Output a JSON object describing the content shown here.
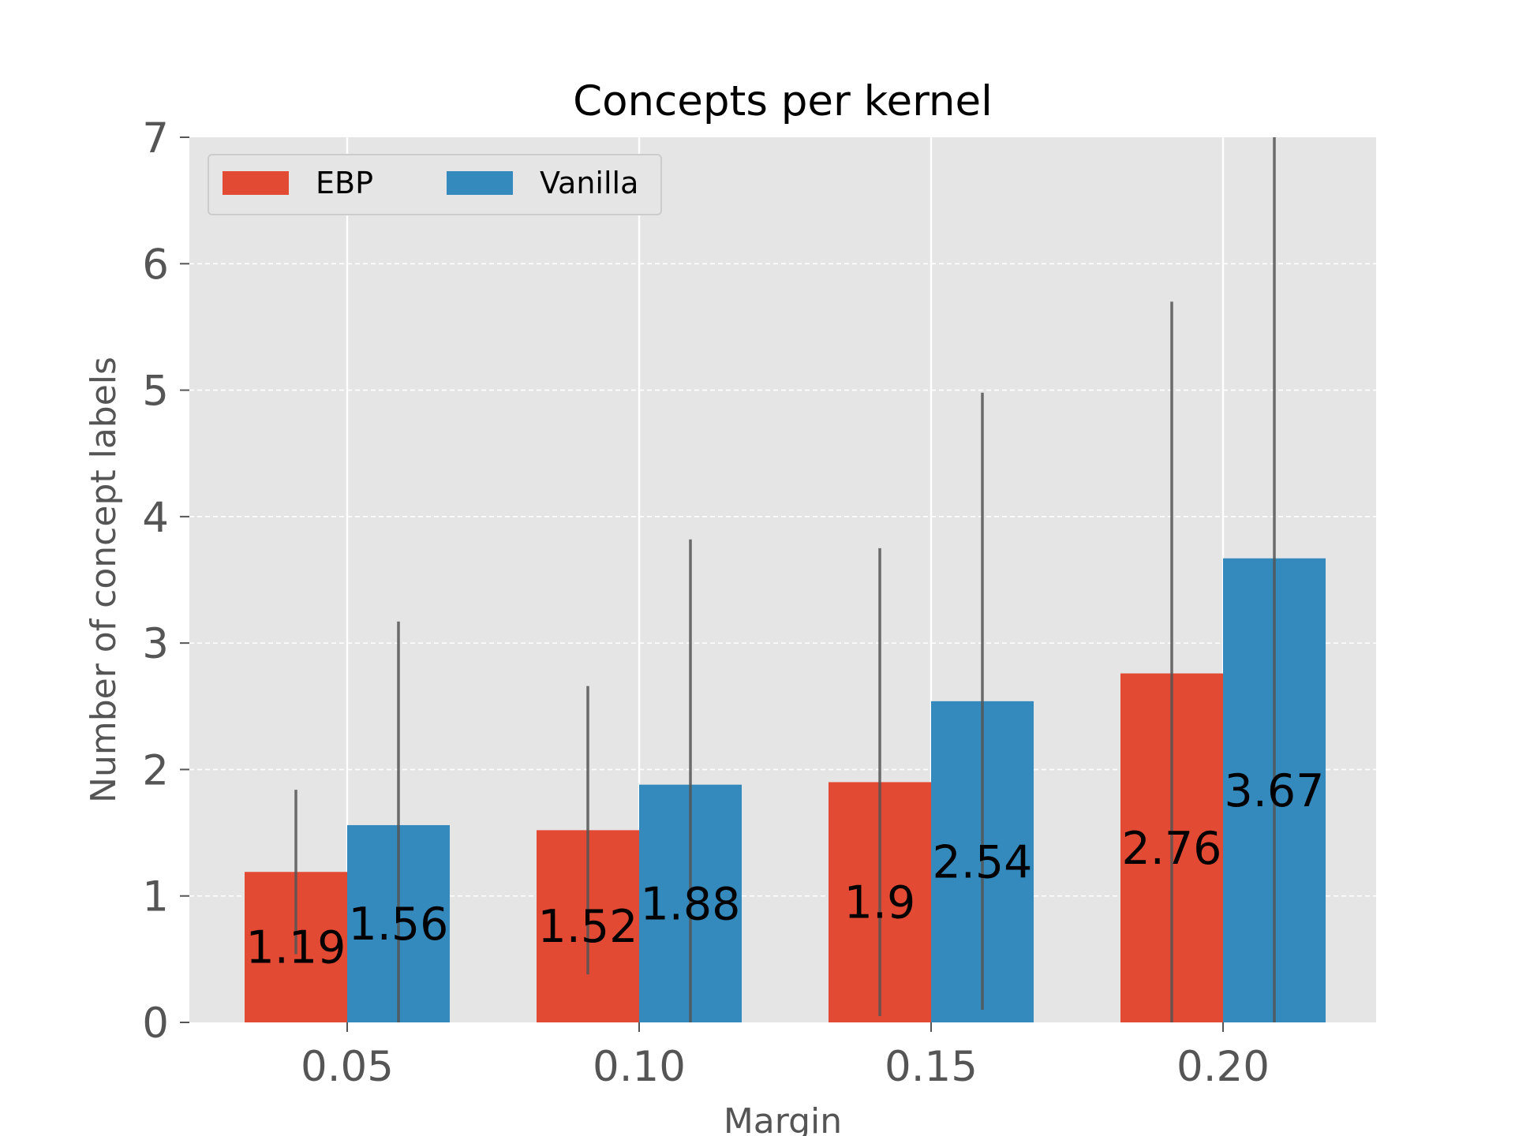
{
  "chart_data": {
    "type": "bar",
    "title": "Concepts per kernel",
    "xlabel": "Margin",
    "ylabel": "Number of concept labels",
    "categories": [
      "0.05",
      "0.10",
      "0.15",
      "0.20"
    ],
    "series": [
      {
        "name": "EBP",
        "color": "#E24A33",
        "values": [
          1.19,
          1.52,
          1.9,
          2.76
        ],
        "labels": [
          "1.19",
          "1.52",
          "1.9",
          "2.76"
        ],
        "err_low": [
          0.54,
          0.38,
          0.05,
          0.0
        ],
        "err_high": [
          1.84,
          2.66,
          3.75,
          5.7
        ]
      },
      {
        "name": "Vanilla",
        "color": "#348ABD",
        "values": [
          1.56,
          1.88,
          2.54,
          3.67
        ],
        "labels": [
          "1.56",
          "1.88",
          "2.54",
          "3.67"
        ],
        "err_low": [
          0.0,
          0.0,
          0.1,
          0.0
        ],
        "err_high": [
          3.17,
          3.82,
          4.98,
          7.0
        ]
      }
    ],
    "ylim": [
      0,
      7
    ],
    "yticks": [
      "0",
      "1",
      "2",
      "3",
      "4",
      "5",
      "6",
      "7"
    ],
    "grid": true,
    "legend_position": "upper-left",
    "background": "#E5E5E5",
    "errorbar_color": "#555555"
  }
}
